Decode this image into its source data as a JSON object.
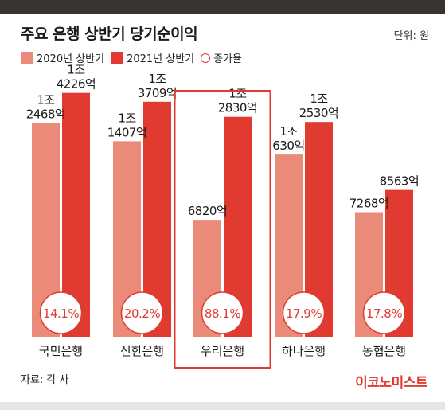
{
  "header": {
    "title": "주요 은행 상반기 당기순이익",
    "unit": "단위: 원"
  },
  "legend": {
    "series1": "2020년 상반기",
    "series2": "2021년 상반기",
    "growth": "증가율"
  },
  "colors": {
    "series1": "#ea8a78",
    "series2": "#e03a31",
    "highlight": "#e23a33",
    "ring": "#e03a31"
  },
  "chart_data": {
    "type": "bar",
    "title": "주요 은행 상반기 당기순이익",
    "categories": [
      "국민은행",
      "신한은행",
      "우리은행",
      "하나은행",
      "농협은행"
    ],
    "series": [
      {
        "name": "2020년 상반기",
        "values": [
          1.2468,
          1.1407,
          0.682,
          1.063,
          0.7268
        ]
      },
      {
        "name": "2021년 상반기",
        "values": [
          1.4226,
          1.3709,
          1.283,
          1.253,
          0.8563
        ]
      }
    ],
    "value_labels": [
      [
        [
          "1조",
          "2468억"
        ],
        [
          "1조",
          "1407억"
        ],
        [
          "6820억"
        ],
        [
          "1조",
          "630억"
        ],
        [
          "7268억"
        ]
      ],
      [
        [
          "1조",
          "4226억"
        ],
        [
          "1조",
          "3709억"
        ],
        [
          "1조",
          "2830억"
        ],
        [
          "1조",
          "2530억"
        ],
        [
          "8563억"
        ]
      ]
    ],
    "growth_labels": [
      "14.1%",
      "20.2%",
      "88.1%",
      "17.9%",
      "17.8%"
    ],
    "value_unit": "조 원",
    "highlighted_category": "우리은행",
    "ylim": [
      0,
      1.5
    ],
    "grid": false
  },
  "footer": {
    "source": "자료: 각 사",
    "logo": "이코노미스트"
  }
}
